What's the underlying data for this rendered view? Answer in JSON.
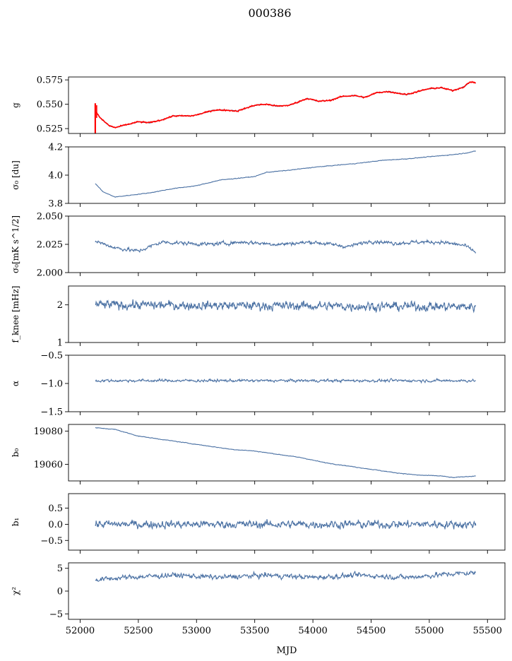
{
  "figure": {
    "title": "000386",
    "xlabel": "MJD",
    "x_ticks": [
      52000,
      52500,
      53000,
      53500,
      54000,
      54500,
      55000,
      55500
    ],
    "xlim": [
      51900,
      55650
    ]
  },
  "colors": {
    "series": "#4c72a4",
    "overlay": "#ff0000",
    "axes": "#000000"
  },
  "chart_data": [
    {
      "type": "line",
      "ylabel": "g",
      "ylim": [
        0.52,
        0.578
      ],
      "yticks": [
        "0.525",
        "0.550",
        "0.575"
      ],
      "x_range": [
        52130,
        55400
      ],
      "anchors": [
        [
          52130,
          0.543
        ],
        [
          52180,
          0.535
        ],
        [
          52250,
          0.528
        ],
        [
          52300,
          0.526
        ],
        [
          52400,
          0.529
        ],
        [
          52500,
          0.532
        ],
        [
          52600,
          0.531
        ],
        [
          52700,
          0.534
        ],
        [
          52800,
          0.538
        ],
        [
          52950,
          0.538
        ],
        [
          53000,
          0.539
        ],
        [
          53150,
          0.544
        ],
        [
          53250,
          0.544
        ],
        [
          53350,
          0.543
        ],
        [
          53500,
          0.549
        ],
        [
          53600,
          0.55
        ],
        [
          53700,
          0.548
        ],
        [
          53800,
          0.549
        ],
        [
          53950,
          0.556
        ],
        [
          54050,
          0.553
        ],
        [
          54150,
          0.554
        ],
        [
          54250,
          0.558
        ],
        [
          54350,
          0.559
        ],
        [
          54450,
          0.557
        ],
        [
          54550,
          0.562
        ],
        [
          54650,
          0.563
        ],
        [
          54800,
          0.56
        ],
        [
          55000,
          0.566
        ],
        [
          55100,
          0.567
        ],
        [
          55200,
          0.564
        ],
        [
          55300,
          0.568
        ],
        [
          55350,
          0.573
        ],
        [
          55400,
          0.572
        ]
      ],
      "noise": 0.0007,
      "overlay": true,
      "overlay_spike": [
        52130,
        0.52,
        0.551
      ]
    },
    {
      "type": "line",
      "ylabel": "σ₀ [du]",
      "ylim": [
        3.8,
        4.2
      ],
      "yticks": [
        "3.8",
        "4.0",
        "4.2"
      ],
      "x_range": [
        52130,
        55400
      ],
      "anchors": [
        [
          52130,
          3.94
        ],
        [
          52200,
          3.88
        ],
        [
          52300,
          3.845
        ],
        [
          52400,
          3.855
        ],
        [
          52600,
          3.875
        ],
        [
          52800,
          3.905
        ],
        [
          53000,
          3.925
        ],
        [
          53200,
          3.965
        ],
        [
          53500,
          3.99
        ],
        [
          53600,
          4.02
        ],
        [
          53800,
          4.035
        ],
        [
          54000,
          4.055
        ],
        [
          54200,
          4.07
        ],
        [
          54400,
          4.085
        ],
        [
          54600,
          4.105
        ],
        [
          54800,
          4.115
        ],
        [
          55000,
          4.13
        ],
        [
          55200,
          4.145
        ],
        [
          55300,
          4.155
        ],
        [
          55400,
          4.17
        ]
      ],
      "noise": 0.004
    },
    {
      "type": "line",
      "ylabel": "σ₀[mK s^1/2]",
      "ylim": [
        2.0,
        2.05
      ],
      "yticks": [
        "2.000",
        "2.025",
        "2.050"
      ],
      "x_range": [
        52130,
        55400
      ],
      "anchors": [
        [
          52130,
          2.028
        ],
        [
          52300,
          2.022
        ],
        [
          52500,
          2.019
        ],
        [
          52700,
          2.027
        ],
        [
          52900,
          2.026
        ],
        [
          53100,
          2.025
        ],
        [
          53400,
          2.027
        ],
        [
          53700,
          2.025
        ],
        [
          54000,
          2.027
        ],
        [
          54300,
          2.023
        ],
        [
          54500,
          2.028
        ],
        [
          54700,
          2.026
        ],
        [
          54900,
          2.027
        ],
        [
          55100,
          2.027
        ],
        [
          55300,
          2.024
        ],
        [
          55400,
          2.018
        ]
      ],
      "noise": 0.003
    },
    {
      "type": "line",
      "ylabel": "f_knee [mHz]",
      "ylim": [
        1,
        2.5
      ],
      "yticks": [
        "1",
        "2"
      ],
      "x_range": [
        52130,
        55400
      ],
      "anchors": [
        [
          52130,
          2.0
        ],
        [
          55400,
          1.95
        ]
      ],
      "noise": 0.22
    },
    {
      "type": "line",
      "ylabel": "α",
      "ylim": [
        -1.5,
        -0.5
      ],
      "yticks": [
        "−1.5",
        "−1.0",
        "−0.5"
      ],
      "x_range": [
        52130,
        55400
      ],
      "anchors": [
        [
          52130,
          -0.95
        ],
        [
          55400,
          -0.95
        ]
      ],
      "noise": 0.045
    },
    {
      "type": "line",
      "ylabel": "b₀",
      "ylim": [
        19050,
        19084
      ],
      "yticks": [
        "19060",
        "19080"
      ],
      "x_range": [
        52130,
        55400
      ],
      "anchors": [
        [
          52130,
          19082
        ],
        [
          52300,
          19081
        ],
        [
          52500,
          19077
        ],
        [
          52700,
          19075
        ],
        [
          52900,
          19073
        ],
        [
          53100,
          19071
        ],
        [
          53300,
          19069
        ],
        [
          53500,
          19068
        ],
        [
          53700,
          19066
        ],
        [
          53900,
          19064
        ],
        [
          54100,
          19061
        ],
        [
          54300,
          19059
        ],
        [
          54500,
          19057
        ],
        [
          54700,
          19055
        ],
        [
          54900,
          19053.5
        ],
        [
          55100,
          19053
        ],
        [
          55200,
          19052
        ],
        [
          55300,
          19052.5
        ],
        [
          55400,
          19053
        ]
      ],
      "noise": 0.35
    },
    {
      "type": "line",
      "ylabel": "b₁",
      "ylim": [
        -0.8,
        0.95
      ],
      "yticks": [
        "−0.5",
        "0.0",
        "0.5"
      ],
      "x_range": [
        52130,
        55400
      ],
      "anchors": [
        [
          52130,
          0.0
        ],
        [
          55400,
          0.0
        ]
      ],
      "noise": 0.22
    },
    {
      "type": "line",
      "ylabel": "χ²",
      "ylim": [
        -6.2,
        6.2
      ],
      "yticks": [
        "−5",
        "0",
        "5"
      ],
      "x_range": [
        52130,
        55400
      ],
      "anchors": [
        [
          52130,
          2.5
        ],
        [
          52400,
          3.0
        ],
        [
          52800,
          3.5
        ],
        [
          53200,
          3.0
        ],
        [
          53600,
          3.5
        ],
        [
          54000,
          3.0
        ],
        [
          54400,
          3.5
        ],
        [
          54800,
          3.0
        ],
        [
          55200,
          3.8
        ],
        [
          55400,
          4.0
        ]
      ],
      "noise": 1.0
    }
  ]
}
